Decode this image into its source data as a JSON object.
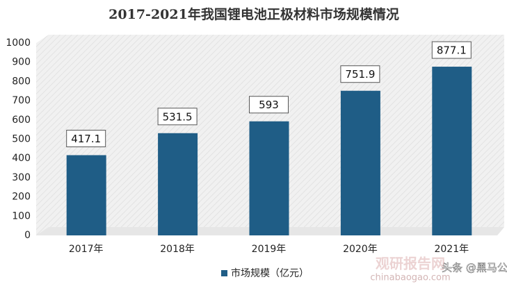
{
  "chart_data": {
    "type": "bar",
    "title": "2017-2021年我国锂电池正极材料市场规模情况",
    "categories": [
      "2017年",
      "2018年",
      "2019年",
      "2020年",
      "2021年"
    ],
    "series": [
      {
        "name": "市场规模（亿元）",
        "color": "#1f5d86",
        "values": [
          417.1,
          531.5,
          593,
          751.9,
          877.1
        ]
      }
    ],
    "ylim": [
      0,
      1000
    ],
    "yticks": [
      0,
      100,
      200,
      300,
      400,
      500,
      600,
      700,
      800,
      900,
      1000
    ],
    "grid": false,
    "legend": "bottom"
  },
  "watermarks": [
    "观研报告网",
    "chinabaogao.com",
    "头条 @黑马公社"
  ]
}
